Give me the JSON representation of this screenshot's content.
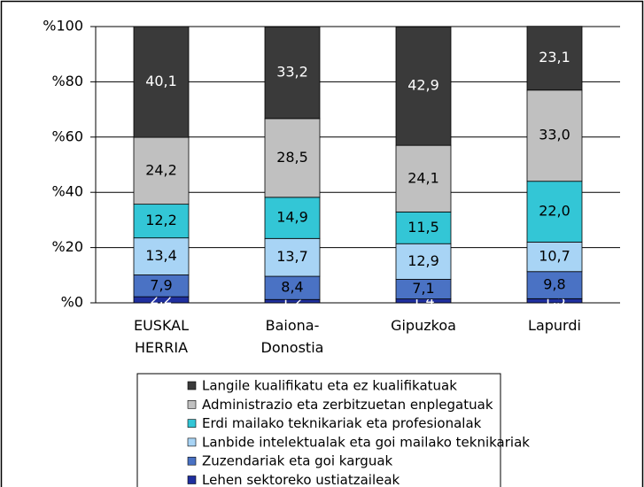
{
  "chart_data": {
    "type": "stacked_bar",
    "categories": [
      "EUSKAL HERRIA",
      "Baiona-Donostia",
      "Gipuzkoa",
      "Lapurdi"
    ],
    "series": [
      {
        "name": "Lehen sektoreko ustiatzaileak",
        "color": "#1f2f9e",
        "values": [
          2.2,
          1.2,
          1.4,
          1.5
        ],
        "value_labels": [
          "2,2",
          "1,2",
          "1,4",
          "1,5"
        ]
      },
      {
        "name": "Zuzendariak eta goi karguak",
        "color": "#4a72c4",
        "values": [
          7.9,
          8.4,
          7.1,
          9.8
        ],
        "value_labels": [
          "7,9",
          "8,4",
          "7,1",
          "9,8"
        ]
      },
      {
        "name": "Lanbide intelektualak eta goi mailako teknikariak",
        "color": "#a8d4f5",
        "values": [
          13.4,
          13.7,
          12.9,
          10.7
        ],
        "value_labels": [
          "13,4",
          "13,7",
          "12,9",
          "10,7"
        ]
      },
      {
        "name": "Erdi mailako teknikariak eta profesionalak",
        "color": "#33c6d6",
        "values": [
          12.2,
          14.9,
          11.5,
          22.0
        ],
        "value_labels": [
          "12,2",
          "14,9",
          "11,5",
          "22,0"
        ]
      },
      {
        "name": "Administrazio eta zerbitzuetan enplegatuak",
        "color": "#c0c0c0",
        "values": [
          24.2,
          28.5,
          24.1,
          33.0
        ],
        "value_labels": [
          "24,2",
          "28,5",
          "24,1",
          "33,0"
        ]
      },
      {
        "name": "Langile kualifikatu eta ez kualifikatuak",
        "color": "#3a3a3a",
        "values": [
          40.1,
          33.2,
          42.9,
          23.1
        ],
        "value_labels": [
          "40,1",
          "33,2",
          "42,9",
          "23,1"
        ]
      }
    ],
    "ylim": [
      0,
      100
    ],
    "yticks": [
      {
        "value": 0,
        "label": "%0"
      },
      {
        "value": 20,
        "label": "%20"
      },
      {
        "value": 40,
        "label": "%40"
      },
      {
        "value": 60,
        "label": "%60"
      },
      {
        "value": 80,
        "label": "%80"
      },
      {
        "value": 100,
        "label": "%100"
      }
    ],
    "grid": true,
    "legend": "bottom"
  }
}
